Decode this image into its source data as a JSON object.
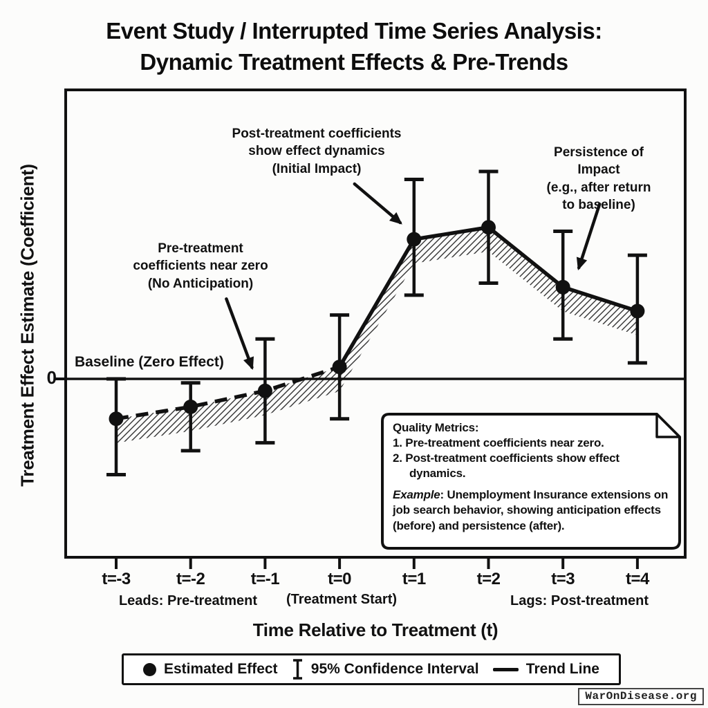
{
  "title": "Event Study / Interrupted Time Series Analysis:\nDynamic Treatment Effects & Pre-Trends",
  "y_axis_label": "Treatment Effect Estimate (Coefficient)",
  "x_axis_label": "Time Relative to Treatment (t)",
  "zero_tick_label": "0",
  "baseline_label": "Baseline (Zero Effect)",
  "annotations": {
    "post_treatment": "Post-treatment coefficients\nshow effect dynamics\n(Initial Impact)",
    "persistence": "Persistence of Impact\n(e.g., after return\nto baseline)",
    "pre_treatment": "Pre-treatment\ncoefficients near zero\n(No Anticipation)"
  },
  "x_group_labels": {
    "leads": "Leads: Pre-treatment",
    "treatment_start": "(Treatment Start)",
    "lags": "Lags: Post-treatment"
  },
  "quality_box": {
    "heading": "Quality Metrics:",
    "items": [
      "1. Pre-treatment coefficients near zero.",
      "2. Post-treatment coefficients show effect dynamics."
    ],
    "example_label": "Example",
    "example_text": ": Unemployment Insurance extensions on job search behavior, showing anticipation effects (before) and persistence (after)."
  },
  "legend": {
    "estimated_effect": "Estimated Effect",
    "confidence_interval": "95% Confidence Interval",
    "trend_line": "Trend Line"
  },
  "watermark": "WarOnDisease.org",
  "colors": {
    "ink": "#111111",
    "background": "#fcfcfb",
    "hatch": "#333333"
  },
  "chart_data": {
    "type": "line",
    "title": "Event Study / Interrupted Time Series Analysis: Dynamic Treatment Effects & Pre-Trends",
    "xlabel": "Time Relative to Treatment (t)",
    "ylabel": "Treatment Effect Estimate (Coefficient)",
    "x": [
      -3,
      -2,
      -1,
      0,
      1,
      2,
      3,
      4
    ],
    "categories": [
      "t=-3",
      "t=-2",
      "t=-1",
      "t=0",
      "t=1",
      "t=2",
      "t=3",
      "t=4"
    ],
    "series": [
      {
        "name": "Estimated Effect",
        "values": [
          -0.1,
          -0.07,
          -0.03,
          0.03,
          0.35,
          0.38,
          0.23,
          0.17
        ]
      }
    ],
    "ci_low": [
      -0.24,
      -0.18,
      -0.16,
      -0.1,
      0.21,
      0.24,
      0.1,
      0.04
    ],
    "ci_high": [
      0.0,
      -0.01,
      0.1,
      0.16,
      0.5,
      0.52,
      0.37,
      0.31
    ],
    "confidence_level": "95%",
    "baseline": 0,
    "pre_period_line_style": "dashed",
    "post_period_line_style": "solid",
    "ylim": [
      -0.45,
      0.73
    ],
    "grid": false,
    "legend_position": "bottom"
  }
}
